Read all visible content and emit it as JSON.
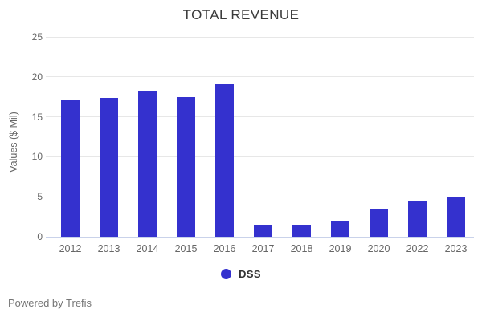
{
  "title": "TOTAL REVENUE",
  "y_axis": {
    "label": "Values ($ Mil)"
  },
  "legend": {
    "label": "DSS"
  },
  "footer": {
    "text": "Powered by Trefis"
  },
  "colors": {
    "bar": "#3431ce",
    "grid": "#e7e7e7",
    "zero_axis": "#c9d2ea",
    "tick_text": "#666666",
    "title_text": "#3a3a3a",
    "legend_text": "#333333",
    "footer_text": "#757575",
    "background": "#ffffff"
  },
  "chart_data": {
    "type": "bar",
    "title": "TOTAL REVENUE",
    "xlabel": "",
    "ylabel": "Values ($ Mil)",
    "categories": [
      "2012",
      "2013",
      "2014",
      "2015",
      "2016",
      "2017",
      "2018",
      "2019",
      "2020",
      "2022",
      "2023"
    ],
    "series": [
      {
        "name": "DSS",
        "values": [
          17.1,
          17.4,
          18.2,
          17.5,
          19.1,
          1.5,
          1.5,
          2.0,
          3.5,
          4.5,
          4.9
        ]
      }
    ],
    "ylim": [
      0,
      25
    ],
    "yticks": [
      0,
      5,
      10,
      15,
      20,
      25
    ],
    "grid": true,
    "legend_position": "bottom"
  }
}
